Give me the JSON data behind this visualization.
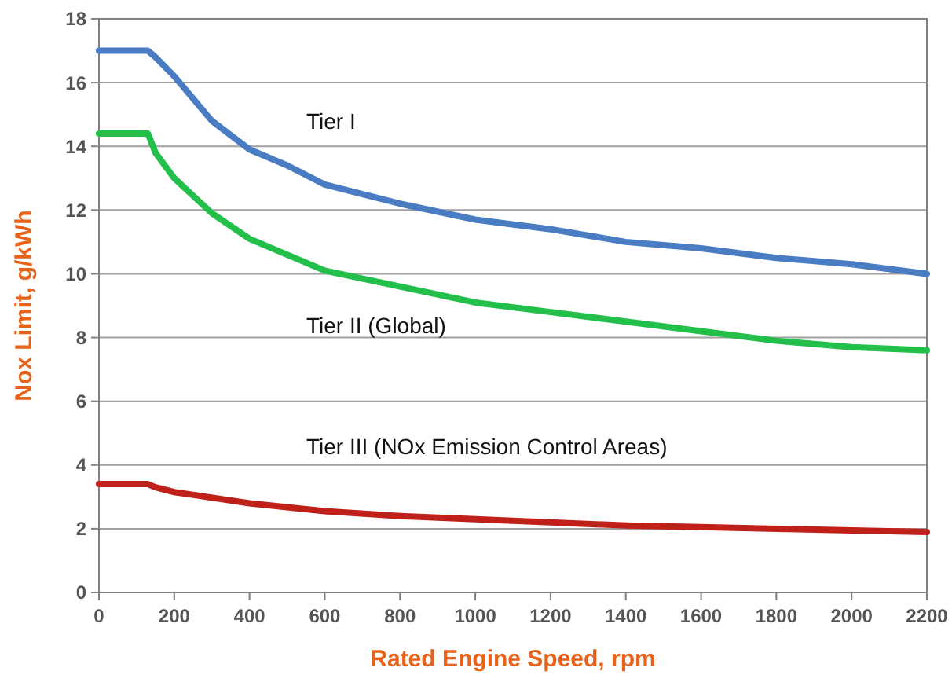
{
  "chart_data": {
    "type": "line",
    "xlabel": "Rated Engine Speed, rpm",
    "ylabel": "Nox Limit, g/kWh",
    "xlim": [
      0,
      2200
    ],
    "xticks": [
      0,
      200,
      400,
      600,
      800,
      1000,
      1200,
      1400,
      1600,
      1800,
      2000,
      2200
    ],
    "ylim": [
      0,
      18
    ],
    "yticks": [
      0,
      2,
      4,
      6,
      8,
      10,
      12,
      14,
      16,
      18
    ],
    "grid": "y",
    "marker": "none",
    "line_style": "solid",
    "series": [
      {
        "color": "#4a7cc4",
        "x": [
          0,
          130,
          150,
          200,
          300,
          400,
          500,
          600,
          800,
          1000,
          1200,
          1400,
          1600,
          1800,
          2000,
          2200
        ],
        "values": [
          17,
          17,
          16.8,
          16.2,
          14.8,
          13.9,
          13.4,
          12.8,
          12.2,
          11.7,
          11.4,
          11,
          10.8,
          10.5,
          10.3,
          10
        ]
      },
      {
        "color": "#22c04a",
        "x": [
          0,
          130,
          150,
          200,
          300,
          400,
          500,
          600,
          800,
          1000,
          1200,
          1400,
          1600,
          1800,
          2000,
          2200
        ],
        "values": [
          14.4,
          14.4,
          13.8,
          13,
          11.9,
          11.1,
          10.6,
          10.1,
          9.6,
          9.1,
          8.8,
          8.5,
          8.2,
          7.9,
          7.7,
          7.6
        ]
      },
      {
        "color": "#c0201a",
        "x": [
          0,
          130,
          150,
          200,
          400,
          600,
          800,
          1000,
          1200,
          1400,
          1600,
          1800,
          2000,
          2200
        ],
        "values": [
          3.4,
          3.4,
          3.3,
          3.15,
          2.8,
          2.55,
          2.4,
          2.3,
          2.2,
          2.1,
          2.05,
          2,
          1.95,
          1.9
        ]
      }
    ],
    "annotations": [
      "Tier I",
      "Tier II (Global)",
      "Tier III (NOx Emission Control Areas)"
    ]
  }
}
